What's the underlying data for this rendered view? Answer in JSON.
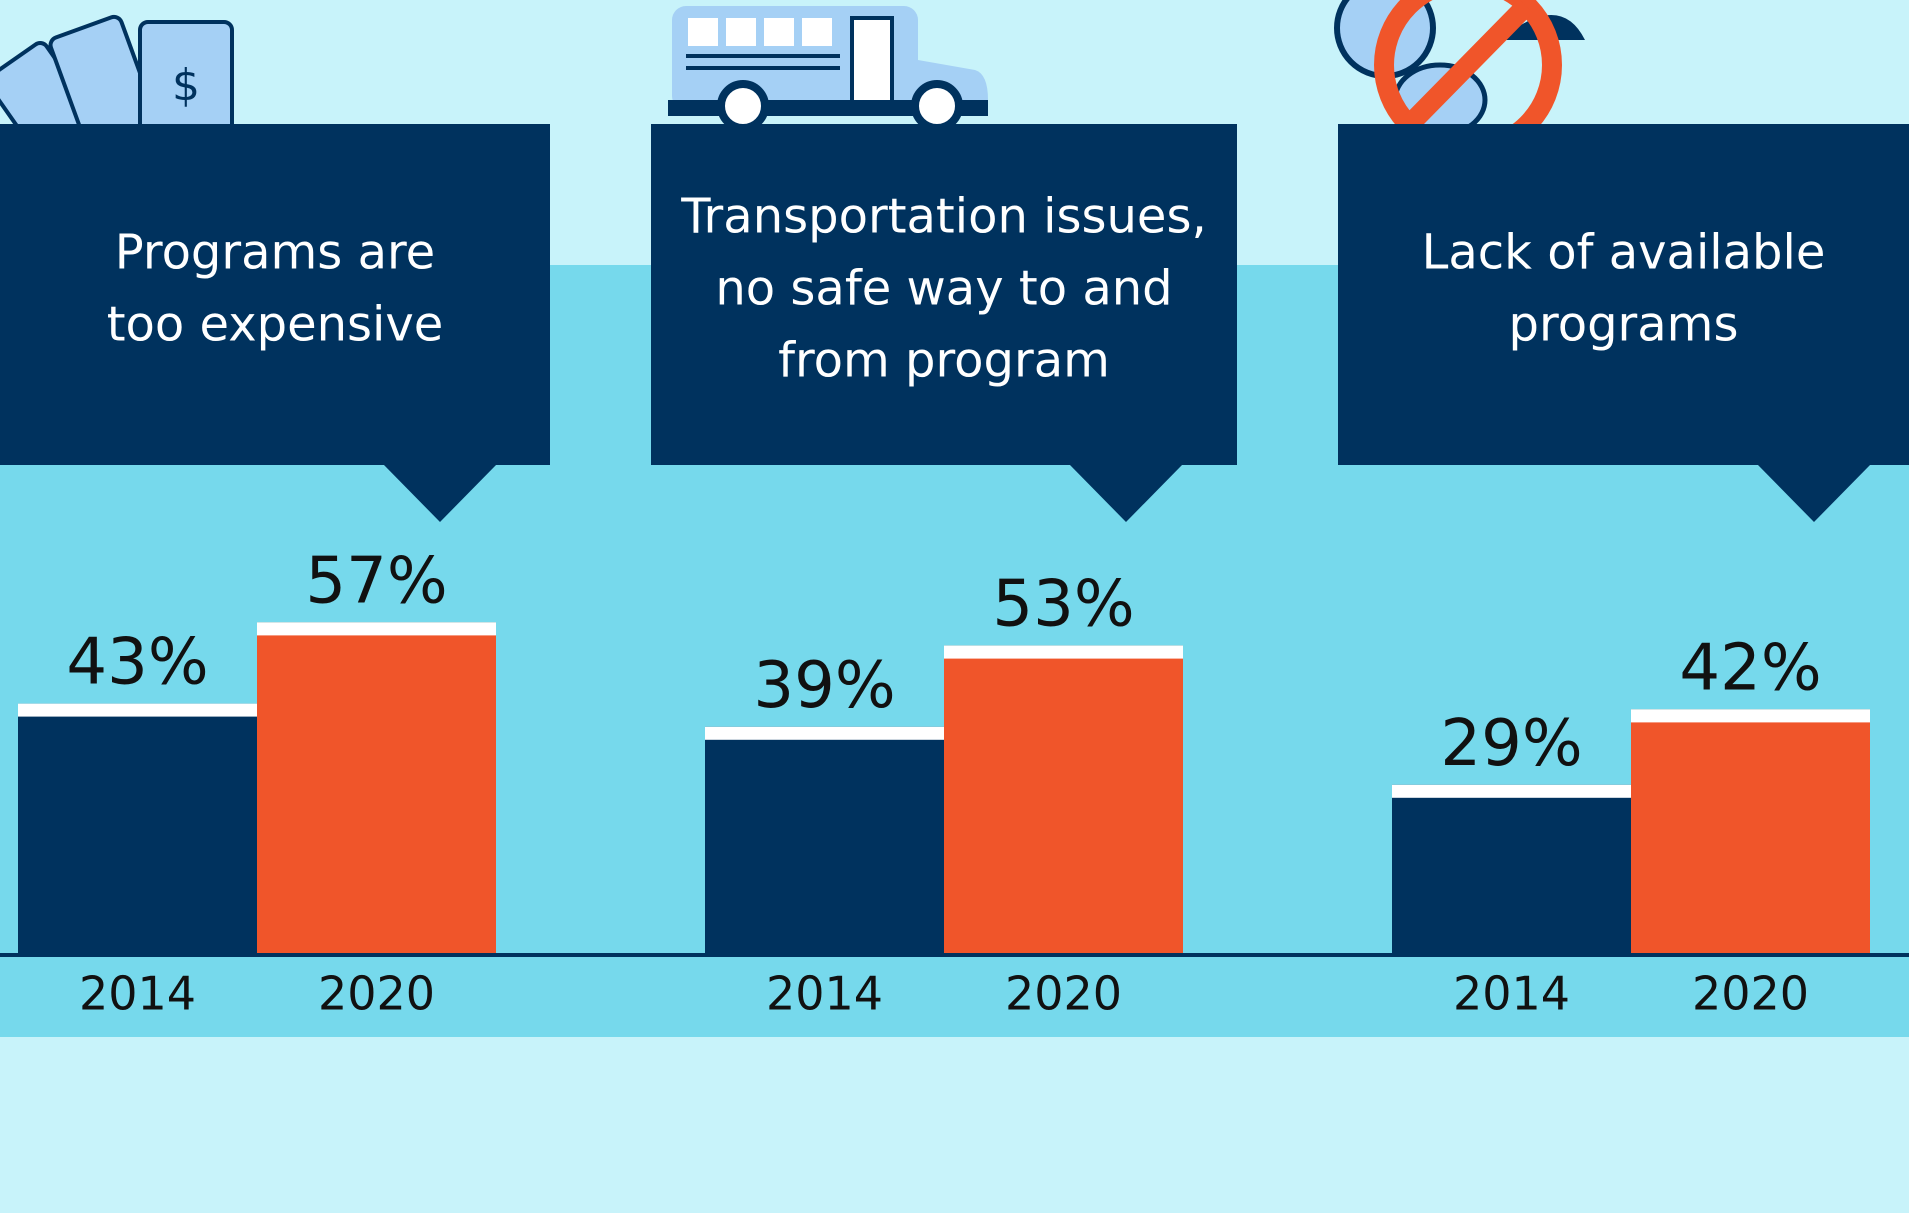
{
  "chart_data": [
    {
      "type": "bar",
      "title": [
        "Programs are",
        "too expensive"
      ],
      "categories": [
        "2014",
        "2020"
      ],
      "values": [
        43,
        57
      ],
      "value_labels": [
        "43%",
        "57%"
      ],
      "colors": [
        "#00325e",
        "#f0552a"
      ]
    },
    {
      "type": "bar",
      "title": [
        "Transportation issues,",
        "no safe way to and",
        "from program"
      ],
      "categories": [
        "2014",
        "2020"
      ],
      "values": [
        39,
        53
      ],
      "value_labels": [
        "39%",
        "53%"
      ],
      "colors": [
        "#00325e",
        "#f0552a"
      ]
    },
    {
      "type": "bar",
      "title": [
        "Lack of available",
        "programs"
      ],
      "categories": [
        "2014",
        "2020"
      ],
      "values": [
        29,
        42
      ],
      "value_labels": [
        "29%",
        "42%"
      ],
      "colors": [
        "#00325e",
        "#f0552a"
      ]
    }
  ]
}
